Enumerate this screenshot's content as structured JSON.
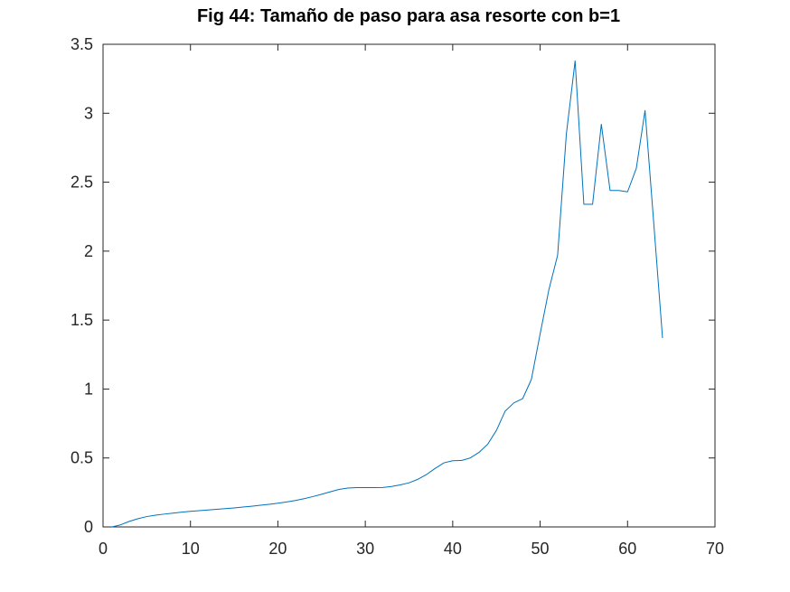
{
  "chart_data": {
    "type": "line",
    "title": "Fig 44: Tamaño de paso para asa resorte con b=1",
    "xlabel": "",
    "ylabel": "",
    "xlim": [
      0,
      70
    ],
    "ylim": [
      0,
      3.5
    ],
    "x_ticks": [
      0,
      10,
      20,
      30,
      40,
      50,
      60,
      70
    ],
    "y_ticks": [
      0,
      0.5,
      1,
      1.5,
      2,
      2.5,
      3,
      3.5
    ],
    "x_tick_labels": [
      "0",
      "10",
      "20",
      "30",
      "40",
      "50",
      "60",
      "70"
    ],
    "y_tick_labels": [
      "0",
      "0.5",
      "1",
      "1.5",
      "2",
      "2.5",
      "3",
      "3.5"
    ],
    "grid": false,
    "legend": "none",
    "series": [
      {
        "color": "#0072bd",
        "x": [
          1,
          2,
          3,
          4,
          5,
          6,
          7,
          8,
          9,
          10,
          11,
          12,
          13,
          14,
          15,
          16,
          17,
          18,
          19,
          20,
          21,
          22,
          23,
          24,
          25,
          26,
          27,
          28,
          29,
          30,
          31,
          32,
          33,
          34,
          35,
          36,
          37,
          38,
          39,
          40,
          41,
          42,
          43,
          44,
          45,
          46,
          47,
          48,
          49,
          50,
          51,
          52,
          53,
          54,
          55,
          56,
          57,
          58,
          59,
          60,
          61,
          62,
          63,
          64
        ],
        "y": [
          0.0,
          0.015,
          0.04,
          0.06,
          0.075,
          0.085,
          0.093,
          0.1,
          0.107,
          0.113,
          0.118,
          0.123,
          0.128,
          0.133,
          0.138,
          0.144,
          0.15,
          0.157,
          0.164,
          0.172,
          0.181,
          0.192,
          0.205,
          0.22,
          0.237,
          0.255,
          0.272,
          0.282,
          0.285,
          0.285,
          0.285,
          0.286,
          0.293,
          0.305,
          0.32,
          0.345,
          0.38,
          0.425,
          0.465,
          0.48,
          0.482,
          0.5,
          0.54,
          0.6,
          0.7,
          0.84,
          0.9,
          0.93,
          1.07,
          1.4,
          1.72,
          1.97,
          2.85,
          3.38,
          2.34,
          2.34,
          2.92,
          2.44,
          2.44,
          2.43,
          2.6,
          3.02,
          2.2,
          1.37
        ]
      }
    ]
  }
}
